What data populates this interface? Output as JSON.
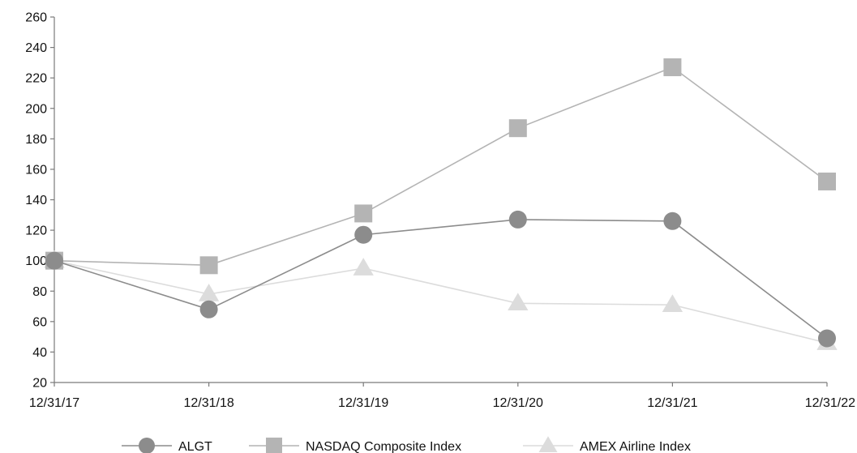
{
  "chart_data": {
    "type": "line",
    "categories": [
      "12/31/17",
      "12/31/18",
      "12/31/19",
      "12/31/20",
      "12/31/21",
      "12/31/22"
    ],
    "ylim": [
      20,
      260
    ],
    "yticks": [
      20,
      40,
      60,
      80,
      100,
      120,
      140,
      160,
      180,
      200,
      220,
      240,
      260
    ],
    "grid": false,
    "legend_placement": "bottom",
    "series": [
      {
        "name": "ALGT",
        "marker": "circle",
        "color": "#8c8c8c",
        "values": [
          100,
          68,
          117,
          127,
          126,
          49
        ]
      },
      {
        "name": "NASDAQ Composite Index",
        "marker": "square",
        "color": "#b4b4b4",
        "values": [
          100,
          97,
          131,
          187,
          227,
          152
        ]
      },
      {
        "name": "AMEX Airline Index",
        "marker": "triangle",
        "color": "#dcdcdc",
        "values": [
          100,
          78,
          95,
          72,
          71,
          46
        ]
      }
    ]
  }
}
